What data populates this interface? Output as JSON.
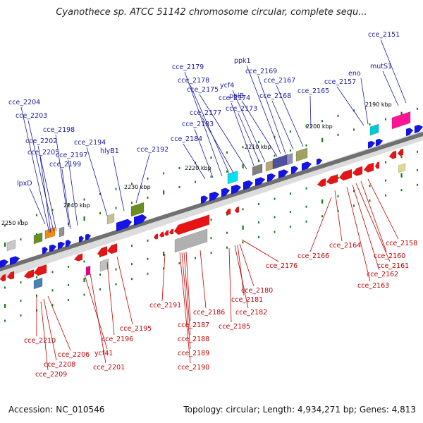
{
  "title": "Cyanothece sp. ATCC 51142 chromosome circular, complete sequ...",
  "accession": "Accession: NC_010546",
  "summary": "Topology: circular; Length: 4,934,271 bp; Genes: 4,813",
  "colors": {
    "forward_gene": "#1414e6",
    "reverse_gene": "#e61414",
    "blue_label": "#1a1aa0",
    "red_label": "#c00000",
    "backbone": "#707070",
    "tick": "#1a7a1a"
  },
  "kbp_ticks": [
    "2190 kbp",
    "2200 kbp",
    "2210 kbp",
    "2220 kbp",
    "2230 kbp",
    "2240 kbp",
    "2250 kbp"
  ],
  "forward_labels": [
    "cce_2151",
    "mutS1",
    "eno",
    "cce_2157",
    "cce_2165",
    "cce_2167",
    "cce_2168",
    "cce_2169",
    "ppk1",
    "ppiB",
    "ycf4",
    "cce_2173",
    "cce_2174",
    "cce_2175",
    "cce_2177",
    "cce_2178",
    "cce_2179",
    "cce_2183",
    "cce_2184",
    "cce_2192",
    "hlyB1",
    "cce_2194",
    "cce_2197",
    "cce_2198",
    "cce_2199",
    "cce_2202",
    "cce_2203",
    "cce_2204",
    "cce_2205",
    "lpxD"
  ],
  "reverse_labels": [
    "cce_2158",
    "cce_2160",
    "cce_2161",
    "cce_2162",
    "cce_2163",
    "cce_2164",
    "cce_2166",
    "cce_2176",
    "cce_2180",
    "cce_2181",
    "cce_2182",
    "cce_2185",
    "cce_2186",
    "cce_2187",
    "cce_2188",
    "cce_2189",
    "cce_2190",
    "cce_2191",
    "cce_2195",
    "cce_2196",
    "cce_2201",
    "ycf41",
    "cce_2206",
    "cce_2208",
    "cce_2209",
    "cce_2210"
  ]
}
